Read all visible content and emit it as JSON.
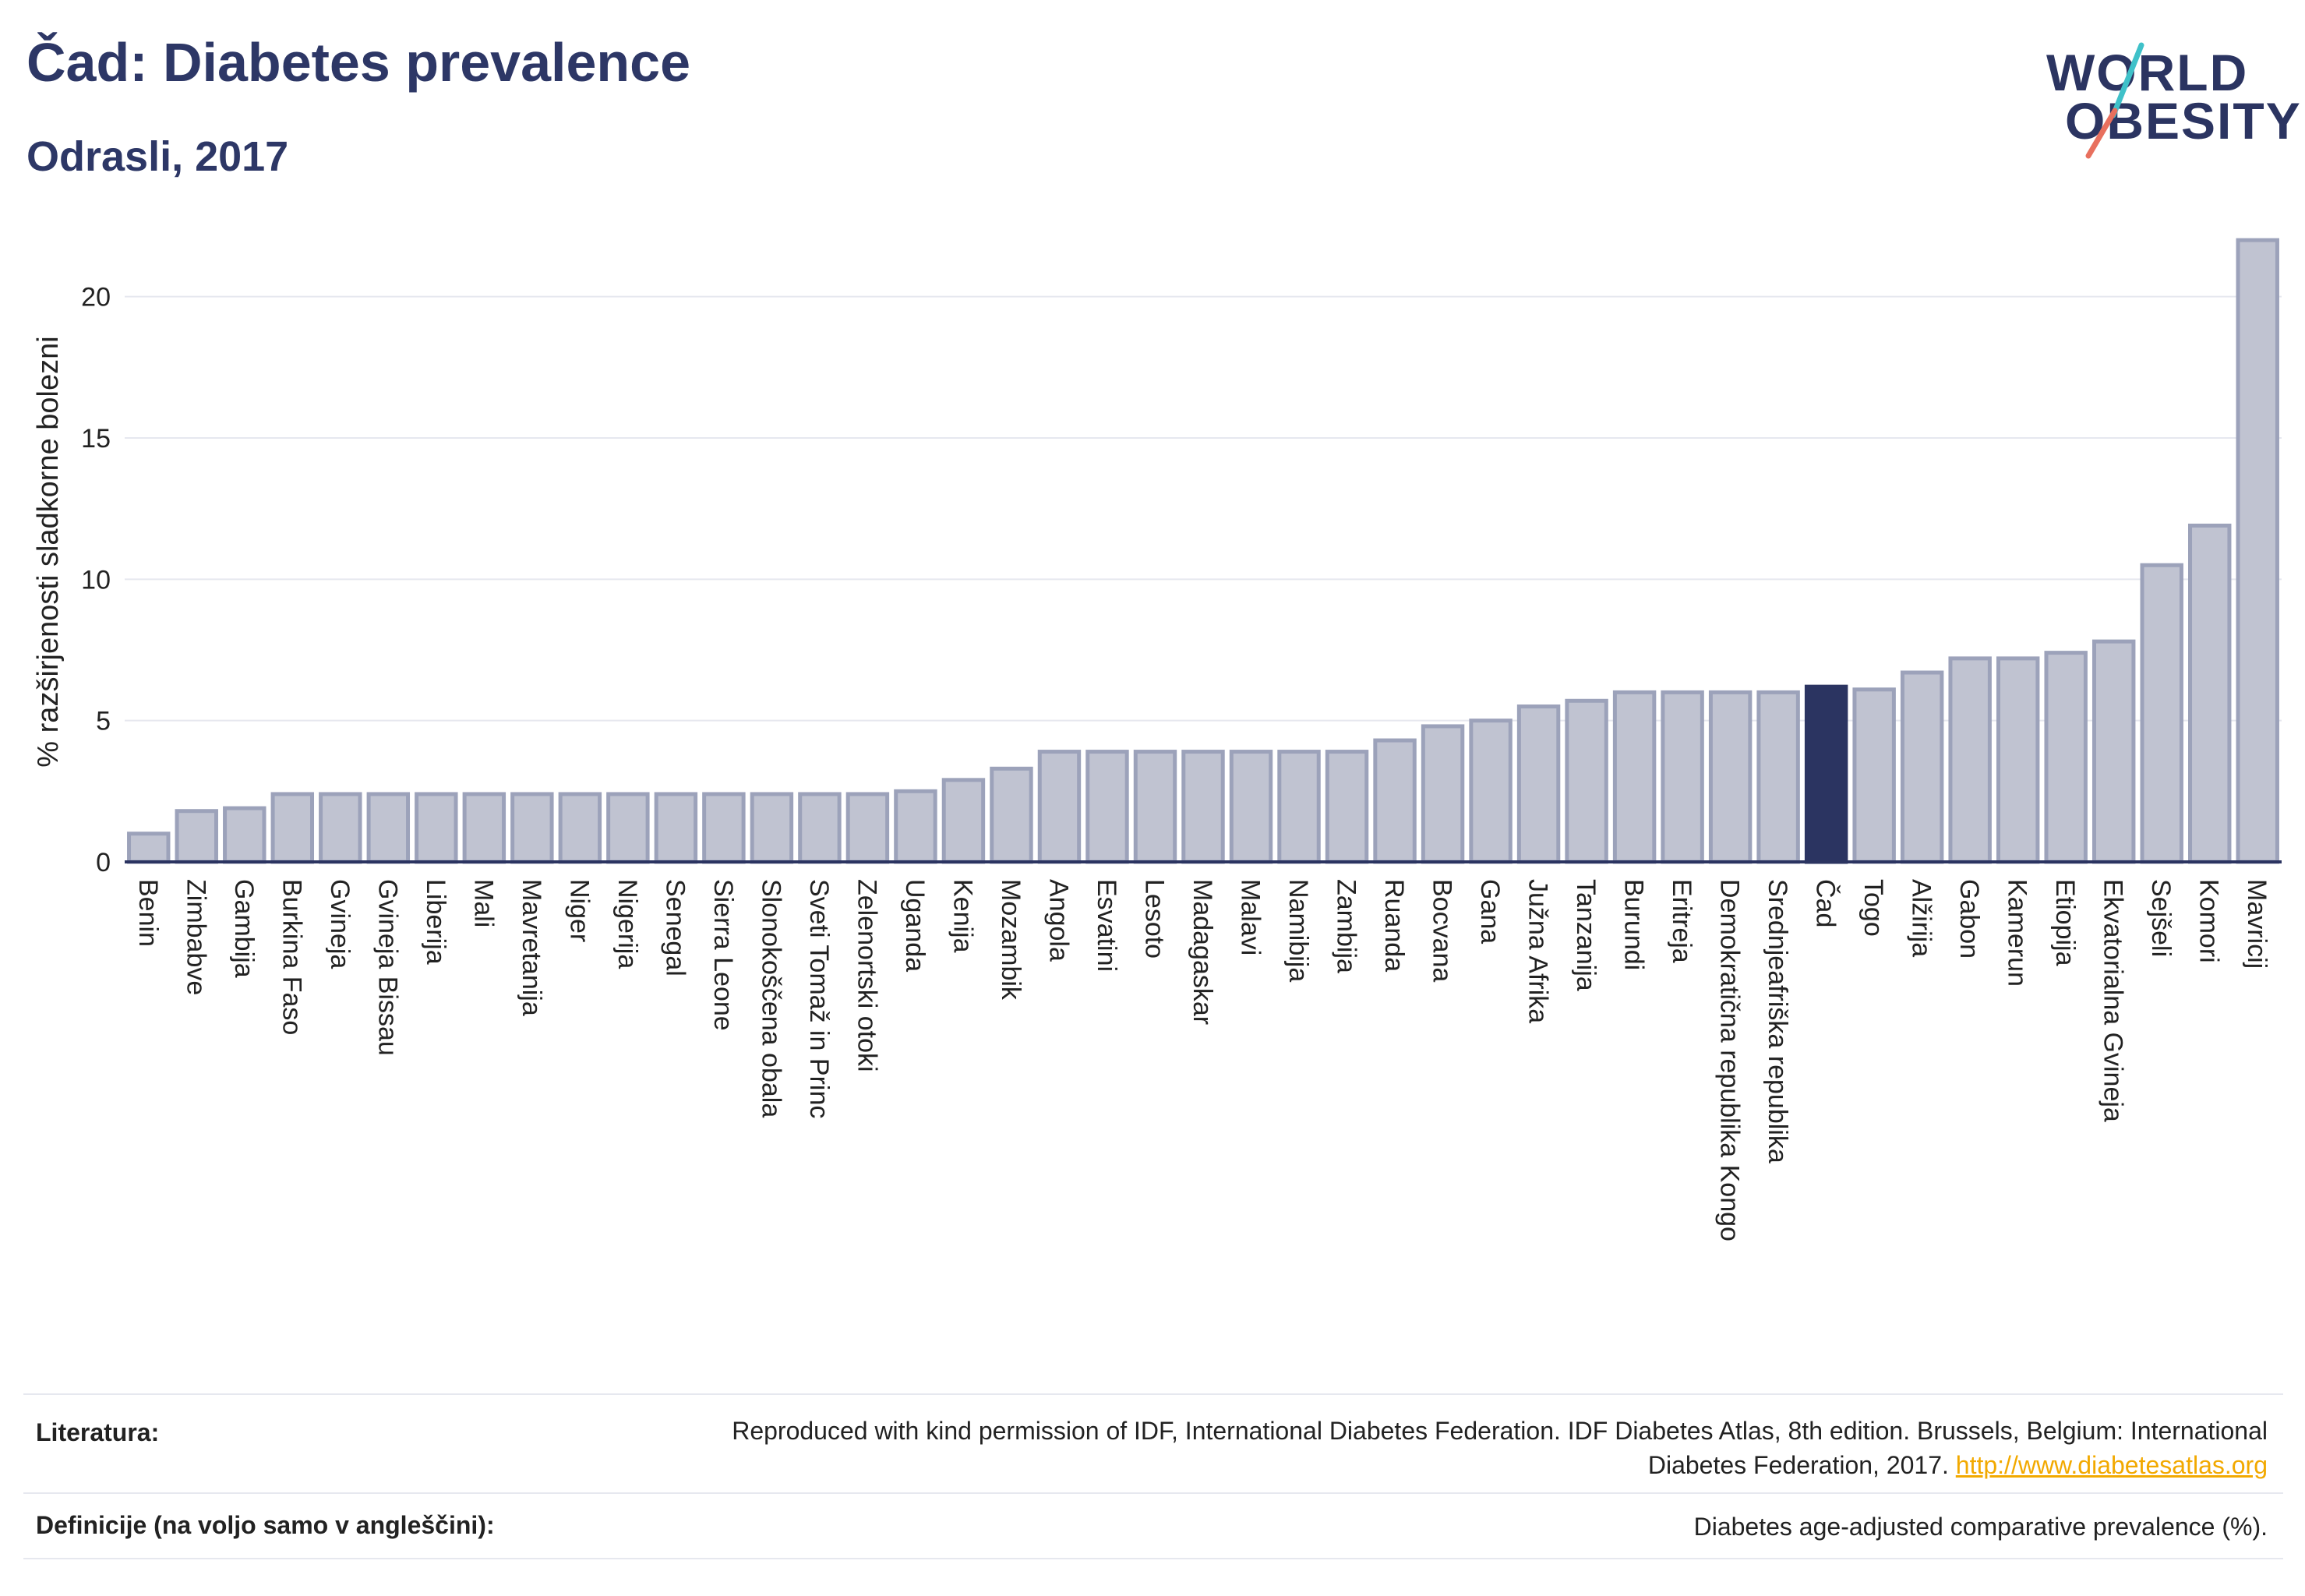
{
  "header": {
    "title": "Čad: Diabetes prevalence",
    "subtitle": "Odrasli, 2017"
  },
  "logo": {
    "line1": "WORLD",
    "line2": "OBESITY",
    "slash_colors": [
      "#3fc1c9",
      "#e8705e"
    ]
  },
  "colors": {
    "bar_fill": "#c0c3d1",
    "bar_stroke": "#9ca2ba",
    "highlight": "#2b3461",
    "grid": "#e6e8ef",
    "text": "#2b3461"
  },
  "chart_data": {
    "type": "bar",
    "title": "Čad: Diabetes prevalence",
    "subtitle": "Odrasli, 2017",
    "ylabel": "% razširjenosti sladkorne bolezni",
    "xlabel": "",
    "ylim": [
      0,
      22.5
    ],
    "yticks": [
      0,
      5,
      10,
      15,
      20
    ],
    "grid": true,
    "highlight": "Čad",
    "categories": [
      "Benin",
      "Zimbabve",
      "Gambija",
      "Burkina Faso",
      "Gvineja",
      "Gvineja Bissau",
      "Liberija",
      "Mali",
      "Mavretanija",
      "Niger",
      "Nigerija",
      "Senegal",
      "Sierra Leone",
      "Slonokoščena obala",
      "Sveti Tomaž in Princ",
      "Zelenortski otoki",
      "Uganda",
      "Kenija",
      "Mozambik",
      "Angola",
      "Esvatini",
      "Lesoto",
      "Madagaskar",
      "Malavi",
      "Namibija",
      "Zambija",
      "Ruanda",
      "Bocvana",
      "Gana",
      "Južna Afrika",
      "Tanzanija",
      "Burundi",
      "Eritreja",
      "Demokratična republika Kongo",
      "Srednjeafriška republika",
      "Čad",
      "Togo",
      "Alžirija",
      "Gabon",
      "Kamerun",
      "Etiopija",
      "Ekvatorialna Gvineja",
      "Sejšeli",
      "Komori",
      "Mavricij"
    ],
    "values": [
      1.0,
      1.8,
      1.9,
      2.4,
      2.4,
      2.4,
      2.4,
      2.4,
      2.4,
      2.4,
      2.4,
      2.4,
      2.4,
      2.4,
      2.4,
      2.4,
      2.5,
      2.9,
      3.3,
      3.9,
      3.9,
      3.9,
      3.9,
      3.9,
      3.9,
      3.9,
      4.3,
      4.8,
      5.0,
      5.5,
      5.7,
      6.0,
      6.0,
      6.0,
      6.0,
      6.2,
      6.1,
      6.7,
      7.2,
      7.2,
      7.4,
      7.8,
      10.5,
      11.9,
      22.0
    ]
  },
  "footer": {
    "references_label": "Literatura:",
    "references_text": "Reproduced with kind permission of IDF, International Diabetes Federation. IDF Diabetes Atlas, 8th edition. Brussels, Belgium: International Diabetes Federation, 2017.",
    "references_link": "http://www.diabetesatlas.org",
    "definitions_label": "Definicije (na voljo samo v angleščini):",
    "definitions_text": "Diabetes age-adjusted comparative prevalence (%)."
  }
}
